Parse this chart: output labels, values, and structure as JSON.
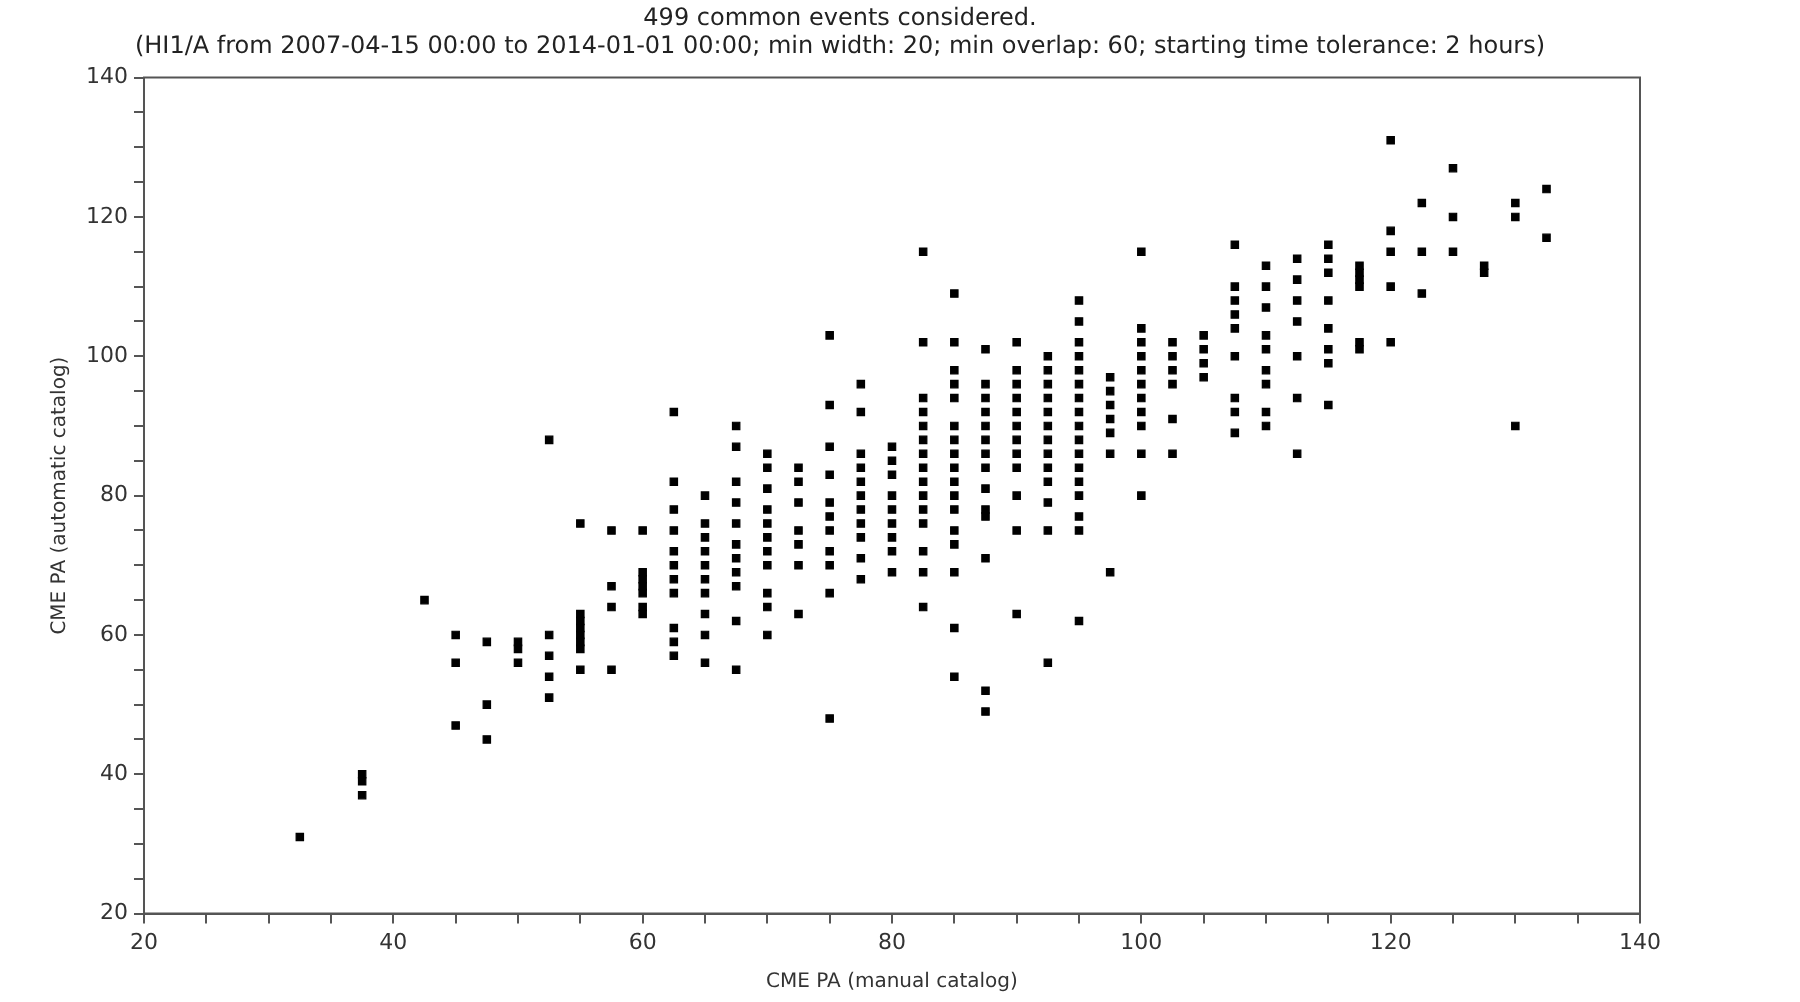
{
  "chart_data": {
    "type": "scatter",
    "title": "499 common events considered.",
    "subtitle": "(HI1/A from 2007-04-15 00:00 to 2014-01-01 00:00; min width: 20; min overlap: 60; starting time tolerance: 2 hours)",
    "xlabel": "CME PA (manual catalog)",
    "ylabel": "CME PA (automatic catalog)",
    "xlim": [
      20,
      140
    ],
    "ylim": [
      20,
      140
    ],
    "xticks": [
      20,
      {
        "value": 25,
        "label": null
      },
      {
        "value": 30,
        "label": null
      },
      {
        "value": 35,
        "label": null
      },
      40,
      {
        "value": 45,
        "label": null
      },
      {
        "value": 50,
        "label": null
      },
      {
        "value": 55,
        "label": null
      },
      60,
      {
        "value": 65,
        "label": null
      },
      {
        "value": 70,
        "label": null
      },
      {
        "value": 75,
        "label": null
      },
      80,
      {
        "value": 85,
        "label": null
      },
      {
        "value": 90,
        "label": null
      },
      {
        "value": 95,
        "label": null
      },
      100,
      {
        "value": 105,
        "label": null
      },
      {
        "value": 110,
        "label": null
      },
      {
        "value": 115,
        "label": null
      },
      120,
      {
        "value": 125,
        "label": null
      },
      {
        "value": 130,
        "label": null
      },
      {
        "value": 135,
        "label": null
      },
      140
    ],
    "yticks": [
      20,
      {
        "value": 25,
        "label": null
      },
      {
        "value": 30,
        "label": null
      },
      {
        "value": 35,
        "label": null
      },
      40,
      {
        "value": 45,
        "label": null
      },
      {
        "value": 50,
        "label": null
      },
      {
        "value": 55,
        "label": null
      },
      60,
      {
        "value": 65,
        "label": null
      },
      {
        "value": 70,
        "label": null
      },
      {
        "value": 75,
        "label": null
      },
      80,
      {
        "value": 85,
        "label": null
      },
      {
        "value": 90,
        "label": null
      },
      {
        "value": 95,
        "label": null
      },
      100,
      {
        "value": 105,
        "label": null
      },
      {
        "value": 110,
        "label": null
      },
      {
        "value": 115,
        "label": null
      },
      120,
      {
        "value": 125,
        "label": null
      },
      {
        "value": 130,
        "label": null
      },
      {
        "value": 135,
        "label": null
      },
      140
    ],
    "grid": false,
    "legend": false,
    "marker": "square",
    "series": [
      {
        "color": "#000000",
        "x": [
          32.5,
          37.5,
          37.5,
          37.5,
          42.5,
          45,
          45,
          45,
          47.5,
          47.5,
          47.5,
          50,
          50,
          50,
          52.5,
          52.5,
          52.5,
          52.5,
          52.5,
          55,
          55,
          55,
          55,
          55,
          55,
          55,
          55,
          57.5,
          57.5,
          57.5,
          57.5,
          60,
          60,
          60,
          60,
          60,
          60,
          60,
          62.5,
          62.5,
          62.5,
          62.5,
          62.5,
          62.5,
          62.5,
          62.5,
          62.5,
          62.5,
          62.5,
          65,
          65,
          65,
          65,
          65,
          65,
          65,
          65,
          65,
          65,
          67.5,
          67.5,
          67.5,
          67.5,
          67.5,
          67.5,
          67.5,
          67.5,
          67.5,
          67.5,
          67.5,
          70,
          70,
          70,
          70,
          70,
          70,
          70,
          70,
          70,
          70,
          70,
          72.5,
          72.5,
          72.5,
          72.5,
          72.5,
          72.5,
          72.5,
          75,
          75,
          75,
          75,
          75,
          75,
          75,
          75,
          75,
          75,
          75,
          77.5,
          77.5,
          77.5,
          77.5,
          77.5,
          77.5,
          77.5,
          77.5,
          77.5,
          77.5,
          77.5,
          80,
          80,
          80,
          80,
          80,
          80,
          80,
          80,
          80,
          82.5,
          82.5,
          82.5,
          82.5,
          82.5,
          82.5,
          82.5,
          82.5,
          82.5,
          82.5,
          82.5,
          82.5,
          82.5,
          82.5,
          82.5,
          85,
          85,
          85,
          85,
          85,
          85,
          85,
          85,
          85,
          85,
          85,
          85,
          85,
          85,
          85,
          85,
          85,
          87.5,
          87.5,
          87.5,
          87.5,
          87.5,
          87.5,
          87.5,
          87.5,
          87.5,
          87.5,
          87.5,
          87.5,
          87.5,
          87.5,
          90,
          90,
          90,
          90,
          90,
          90,
          90,
          90,
          90,
          90,
          90,
          90,
          92.5,
          92.5,
          92.5,
          92.5,
          92.5,
          92.5,
          92.5,
          92.5,
          92.5,
          92.5,
          92.5,
          92.5,
          92.5,
          95,
          95,
          95,
          95,
          95,
          95,
          95,
          95,
          95,
          95,
          95,
          95,
          95,
          95,
          95,
          95,
          95,
          97.5,
          97.5,
          97.5,
          97.5,
          97.5,
          97.5,
          97.5,
          100,
          100,
          100,
          100,
          100,
          100,
          100,
          100,
          100,
          100,
          100,
          102.5,
          102.5,
          102.5,
          102.5,
          102.5,
          102.5,
          105,
          105,
          105,
          105,
          107.5,
          107.5,
          107.5,
          107.5,
          107.5,
          107.5,
          107.5,
          107.5,
          107.5,
          110,
          110,
          110,
          110,
          110,
          110,
          110,
          110,
          110,
          112.5,
          112.5,
          112.5,
          112.5,
          112.5,
          112.5,
          112.5,
          115,
          115,
          115,
          115,
          115,
          115,
          115,
          115,
          117.5,
          117.5,
          117.5,
          117.5,
          117.5,
          117.5,
          120,
          120,
          120,
          120,
          120,
          122.5,
          122.5,
          122.5,
          125,
          125,
          125,
          127.5,
          127.5,
          130,
          130,
          130,
          132.5,
          132.5
        ],
        "values": [
          31,
          40,
          39,
          37,
          65,
          60,
          56,
          47,
          59,
          50,
          45,
          59,
          58,
          56,
          88,
          60,
          57,
          54,
          51,
          76,
          63,
          62,
          61,
          60,
          59,
          58,
          55,
          75,
          67,
          64,
          55,
          75,
          69,
          68,
          67,
          66,
          64,
          63,
          92,
          82,
          78,
          75,
          72,
          70,
          68,
          66,
          61,
          59,
          57,
          80,
          76,
          74,
          72,
          70,
          68,
          66,
          63,
          60,
          56,
          90,
          87,
          82,
          79,
          76,
          73,
          71,
          69,
          67,
          62,
          55,
          86,
          84,
          81,
          78,
          76,
          74,
          72,
          70,
          66,
          64,
          60,
          84,
          82,
          79,
          75,
          73,
          70,
          63,
          103,
          93,
          87,
          83,
          79,
          77,
          75,
          72,
          70,
          66,
          48,
          96,
          92,
          86,
          84,
          82,
          80,
          78,
          76,
          74,
          71,
          68,
          87,
          85,
          83,
          80,
          78,
          76,
          74,
          72,
          69,
          115,
          102,
          94,
          92,
          90,
          88,
          86,
          84,
          82,
          80,
          78,
          76,
          72,
          69,
          64,
          109,
          102,
          98,
          96,
          94,
          90,
          88,
          86,
          84,
          82,
          80,
          78,
          75,
          73,
          69,
          61,
          54,
          101,
          96,
          94,
          92,
          90,
          88,
          86,
          84,
          81,
          78,
          77,
          71,
          52,
          49,
          102,
          98,
          96,
          94,
          92,
          90,
          88,
          86,
          84,
          80,
          75,
          63,
          100,
          98,
          96,
          94,
          92,
          90,
          88,
          86,
          84,
          82,
          79,
          75,
          56,
          108,
          105,
          102,
          100,
          98,
          96,
          94,
          92,
          90,
          88,
          86,
          84,
          82,
          80,
          77,
          75,
          62,
          97,
          95,
          93,
          91,
          89,
          86,
          69,
          115,
          104,
          102,
          100,
          98,
          96,
          94,
          92,
          90,
          86,
          80,
          102,
          100,
          98,
          96,
          91,
          86,
          103,
          101,
          99,
          97,
          116,
          110,
          108,
          106,
          104,
          100,
          94,
          92,
          89,
          113,
          110,
          107,
          103,
          101,
          98,
          96,
          92,
          90,
          114,
          111,
          108,
          105,
          100,
          94,
          86,
          116,
          114,
          112,
          108,
          104,
          101,
          99,
          93,
          113,
          112,
          111,
          110,
          102,
          101,
          131,
          118,
          115,
          110,
          102,
          122,
          115,
          109,
          127,
          120,
          115,
          113,
          112,
          122,
          120,
          90,
          124,
          117
        ]
      }
    ]
  }
}
